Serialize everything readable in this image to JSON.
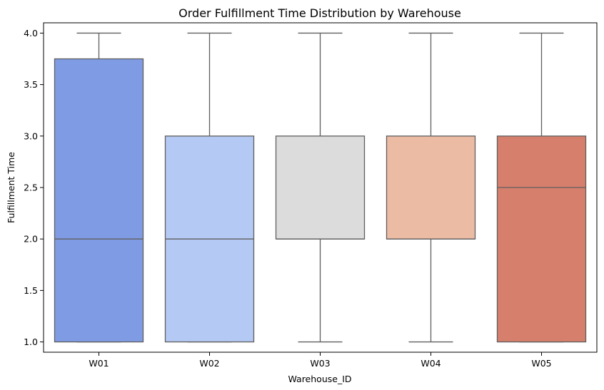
{
  "chart_data": {
    "type": "box",
    "title": "Order Fulfillment Time Distribution by Warehouse",
    "xlabel": "Warehouse_ID",
    "ylabel": "Fulfillment Time",
    "ylim": [
      0.9,
      4.1
    ],
    "yticks": [
      "1.0",
      "1.5",
      "2.0",
      "2.5",
      "3.0",
      "3.5",
      "4.0"
    ],
    "grid": false,
    "legend": "none",
    "categories": [
      "W01",
      "W02",
      "W03",
      "W04",
      "W05"
    ],
    "boxes": [
      {
        "category": "W01",
        "whisker_low": 1.0,
        "q1": 1.0,
        "median": 2.0,
        "q3": 3.75,
        "whisker_high": 4.0,
        "color": "#7f9be4"
      },
      {
        "category": "W02",
        "whisker_low": 1.0,
        "q1": 1.0,
        "median": 2.0,
        "q3": 3.0,
        "whisker_high": 4.0,
        "color": "#b4c9f3"
      },
      {
        "category": "W03",
        "whisker_low": 1.0,
        "q1": 2.0,
        "median": 2.0,
        "q3": 3.0,
        "whisker_high": 4.0,
        "color": "#dcdcdc"
      },
      {
        "category": "W04",
        "whisker_low": 1.0,
        "q1": 2.0,
        "median": 2.0,
        "q3": 3.0,
        "whisker_high": 4.0,
        "color": "#ecbba4"
      },
      {
        "category": "W05",
        "whisker_low": 1.0,
        "q1": 1.0,
        "median": 2.5,
        "q3": 3.0,
        "whisker_high": 4.0,
        "color": "#d67f6c"
      }
    ],
    "line_color": "#5f5f5f",
    "axis_color": "#000000"
  }
}
